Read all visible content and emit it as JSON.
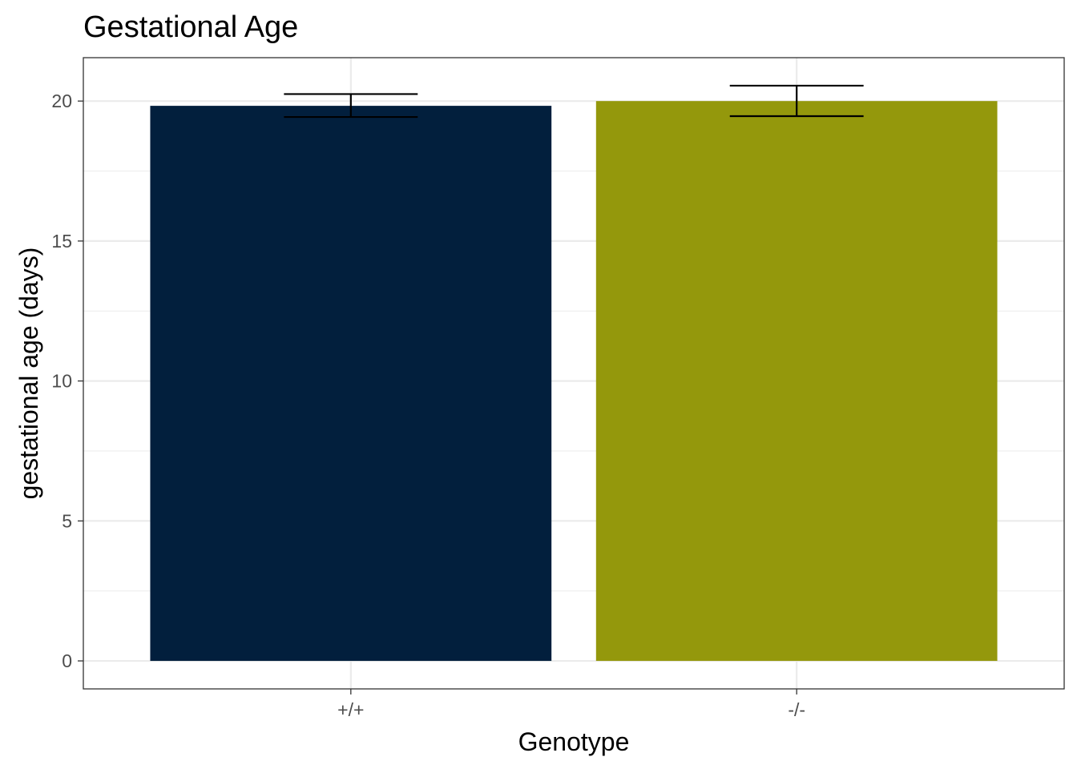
{
  "chart_data": {
    "type": "bar",
    "title": "Gestational Age",
    "xlabel": "Genotype",
    "ylabel": "gestational age (days)",
    "categories": [
      "+/+",
      "-/-"
    ],
    "values": [
      19.83,
      20.0
    ],
    "error_bars": [
      {
        "lower": 19.43,
        "upper": 20.25
      },
      {
        "lower": 19.46,
        "upper": 20.55
      }
    ],
    "colors": [
      "#021f3d",
      "#94980c"
    ],
    "ylim": [
      -1.0,
      21.55
    ],
    "yticks": [
      0,
      5,
      10,
      15,
      20
    ],
    "ytick_labels": [
      "0",
      "5",
      "10",
      "15",
      "20"
    ],
    "grid": true,
    "legend": "none"
  }
}
